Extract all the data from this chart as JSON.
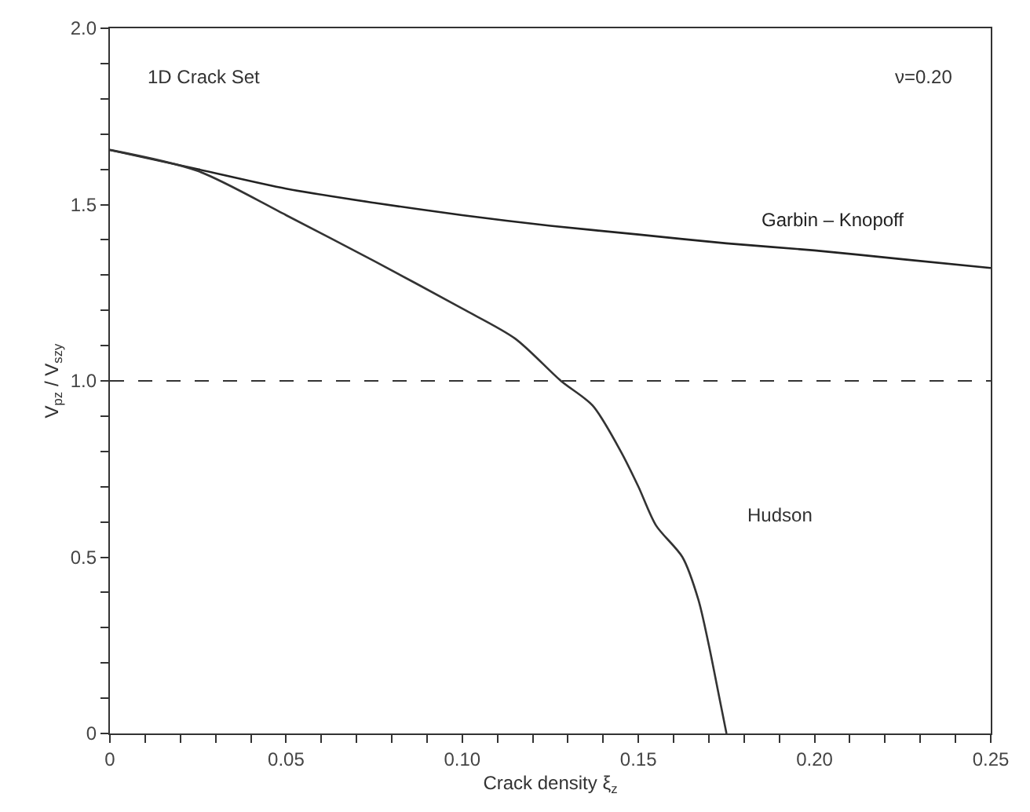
{
  "chart_data": {
    "type": "line",
    "xlabel": "Crack density ξ$_{z}$",
    "ylabel": "V$_{pz}$ / V$_{szy}$",
    "xlim": [
      0,
      0.25
    ],
    "ylim": [
      0,
      2.0
    ],
    "xticks": [
      0,
      {
        "value": 0.01,
        "label": null
      },
      {
        "value": 0.02,
        "label": null
      },
      {
        "value": 0.03,
        "label": null
      },
      {
        "value": 0.04,
        "label": null
      },
      0.05,
      {
        "value": 0.06,
        "label": null
      },
      {
        "value": 0.07,
        "label": null
      },
      {
        "value": 0.08,
        "label": null
      },
      {
        "value": 0.09,
        "label": null
      },
      {
        "value": 0.1,
        "label": "0.10"
      },
      {
        "value": 0.11,
        "label": null
      },
      {
        "value": 0.12,
        "label": null
      },
      {
        "value": 0.13,
        "label": null
      },
      {
        "value": 0.14,
        "label": null
      },
      0.15,
      {
        "value": 0.16,
        "label": null
      },
      {
        "value": 0.17,
        "label": null
      },
      {
        "value": 0.18,
        "label": null
      },
      {
        "value": 0.19,
        "label": null
      },
      {
        "value": 0.2,
        "label": "0.20"
      },
      {
        "value": 0.21,
        "label": null
      },
      {
        "value": 0.22,
        "label": null
      },
      {
        "value": 0.23,
        "label": null
      },
      {
        "value": 0.24,
        "label": null
      },
      0.25
    ],
    "yticks": [
      0,
      {
        "value": 0.1,
        "label": null
      },
      {
        "value": 0.2,
        "label": null
      },
      {
        "value": 0.3,
        "label": null
      },
      {
        "value": 0.4,
        "label": null
      },
      0.5,
      {
        "value": 0.6,
        "label": null
      },
      {
        "value": 0.7,
        "label": null
      },
      {
        "value": 0.8,
        "label": null
      },
      {
        "value": 0.9,
        "label": null
      },
      {
        "value": 1.0,
        "label": "1.0"
      },
      {
        "value": 1.1,
        "label": null
      },
      {
        "value": 1.2,
        "label": null
      },
      {
        "value": 1.3,
        "label": null
      },
      {
        "value": 1.4,
        "label": null
      },
      1.5,
      {
        "value": 1.6,
        "label": null
      },
      {
        "value": 1.7,
        "label": null
      },
      {
        "value": 1.8,
        "label": null
      },
      {
        "value": 1.9,
        "label": null
      },
      {
        "value": 2.0,
        "label": "2.0"
      }
    ],
    "legend": false,
    "marker": "none",
    "line_style": "solid",
    "series": [
      {
        "name": "Garbin – Knopoff",
        "color": "#222222",
        "x": [
          0,
          0.025,
          0.05,
          0.075,
          0.1,
          0.125,
          0.15,
          0.175,
          0.2,
          0.225,
          0.25
        ],
        "values": [
          1.655,
          1.6,
          1.545,
          1.505,
          1.47,
          1.44,
          1.415,
          1.39,
          1.37,
          1.345,
          1.32
        ]
      },
      {
        "name": "Hudson",
        "color": "#333333",
        "x": [
          0,
          0.025,
          0.05,
          0.075,
          0.1,
          0.115,
          0.128,
          0.137,
          0.145,
          0.15,
          0.155,
          0.1625,
          0.167,
          0.17,
          0.173,
          0.175
        ],
        "values": [
          1.655,
          1.595,
          1.47,
          1.34,
          1.205,
          1.12,
          1.0,
          0.93,
          0.8,
          0.7,
          0.59,
          0.5,
          0.38,
          0.25,
          0.1,
          0
        ]
      }
    ],
    "ref_lines": [
      {
        "axis": "y",
        "value": 1.0,
        "line_style": "dashed",
        "color": "#333333"
      }
    ],
    "annotations": [
      "1D Crack Set",
      "ν=0.20"
    ]
  }
}
